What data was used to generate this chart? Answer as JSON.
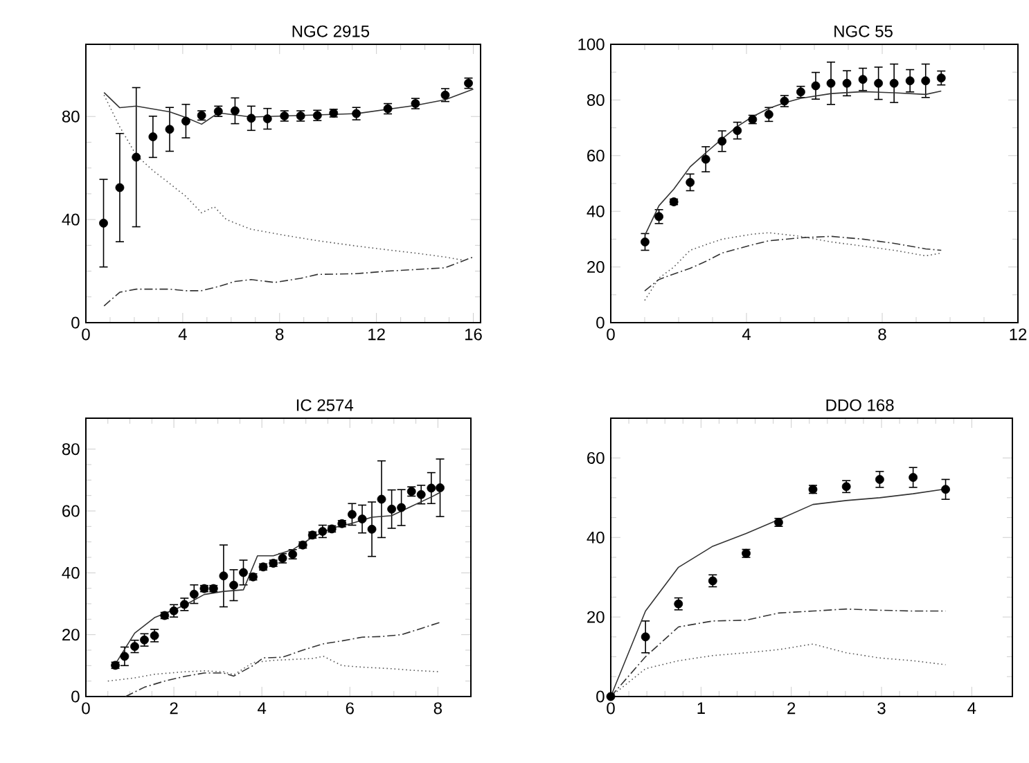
{
  "chart_data": [
    {
      "type": "scatter",
      "marker": "circle",
      "title": "NGC 2915",
      "xlim": [
        0,
        16.3
      ],
      "ylim": [
        0,
        108
      ],
      "xticks": [
        0,
        4,
        8,
        12,
        16
      ],
      "yticks": [
        0,
        40,
        80
      ],
      "series": [
        {
          "color": "#000000",
          "x": [
            0.73,
            1.4,
            2.08,
            2.77,
            3.46,
            4.13,
            4.78,
            5.47,
            6.16,
            6.83,
            7.5,
            8.2,
            8.87,
            9.56,
            10.23,
            11.17,
            12.47,
            13.61,
            14.84,
            15.8
          ],
          "values": [
            38.6,
            52.4,
            64.2,
            72.1,
            75,
            78.2,
            80.4,
            82,
            82.2,
            79.3,
            79.1,
            80.2,
            80.2,
            80.4,
            81.3,
            81.1,
            83,
            85,
            88.3,
            92.9
          ],
          "errors": [
            17,
            21,
            27,
            8,
            8.5,
            6.5,
            1.8,
            2,
            5,
            4.7,
            4,
            2,
            2,
            2,
            1.5,
            2.4,
            2,
            2,
            2.5,
            2
          ]
        },
        {
          "type": "line",
          "marker": "none",
          "line_style": "solid",
          "color": "#333333",
          "x": [
            0.75,
            1.4,
            2.08,
            3.46,
            4.13,
            4.78,
            5.47,
            6.83,
            8.87,
            11.17,
            13.61,
            14.84,
            16
          ],
          "values": [
            89.3,
            83.4,
            84,
            81.8,
            79.6,
            77,
            81.4,
            79.8,
            80.4,
            81.1,
            84.3,
            86.5,
            90.6
          ]
        },
        {
          "type": "line",
          "marker": "none",
          "line_style": "dotted",
          "color": "#555555",
          "x": [
            0.75,
            1.4,
            2.08,
            2.77,
            3.46,
            4.13,
            4.78,
            5.3,
            5.8,
            6.8,
            8.2,
            9.56,
            11.2,
            12.5,
            13.6,
            14.8,
            15.6
          ],
          "values": [
            88.3,
            76,
            65,
            59,
            54,
            49,
            42.6,
            45,
            40,
            36.3,
            33.9,
            31.8,
            29.7,
            28.2,
            27,
            25.5,
            24.2
          ]
        },
        {
          "type": "line",
          "marker": "none",
          "line_style": "dashed",
          "color": "#333333",
          "x": [
            0.75,
            1.4,
            2.08,
            3.46,
            4.13,
            4.78,
            5.47,
            6.16,
            6.83,
            7.8,
            8.87,
            9.56,
            11.17,
            12.47,
            13.6,
            14.84,
            16
          ],
          "values": [
            6.5,
            11.8,
            13,
            13,
            12.4,
            12.4,
            14,
            16,
            16.7,
            15.6,
            17.2,
            18.7,
            19,
            20,
            20.6,
            21.3,
            25.5
          ]
        }
      ]
    },
    {
      "type": "scatter",
      "marker": "circle",
      "title": "NGC 55",
      "xlim": [
        0,
        12
      ],
      "ylim": [
        0,
        100
      ],
      "xticks": [
        0,
        4,
        8,
        12
      ],
      "yticks": [
        0,
        20,
        40,
        60,
        80,
        100
      ],
      "series": [
        {
          "color": "#000000",
          "x": [
            1.01,
            1.42,
            1.86,
            2.34,
            2.8,
            3.28,
            3.73,
            4.18,
            4.66,
            5.12,
            5.6,
            6.04,
            6.49,
            6.96,
            7.43,
            7.89,
            8.35,
            8.82,
            9.28,
            9.74
          ],
          "values": [
            29,
            38.1,
            43.4,
            50.4,
            58.7,
            65.2,
            69,
            73,
            74.8,
            79.6,
            82.9,
            85.1,
            86,
            86,
            87.4,
            86,
            86,
            86.9,
            86.9,
            87.9
          ],
          "errors": [
            3,
            2.5,
            1,
            3,
            4.5,
            3.7,
            3,
            1.5,
            2.5,
            2,
            2,
            4.8,
            7.6,
            4.5,
            4,
            5.8,
            6.9,
            4,
            6,
            2.5
          ]
        },
        {
          "type": "line",
          "marker": "none",
          "line_style": "solid",
          "color": "#333333",
          "x": [
            1.01,
            1.42,
            1.86,
            2.34,
            2.8,
            3.28,
            3.73,
            4.18,
            4.66,
            5.12,
            5.6,
            6.5,
            7.43,
            8.35,
            9.28,
            9.74
          ],
          "values": [
            31.5,
            42,
            48,
            56,
            61,
            66,
            70.5,
            74,
            77,
            79,
            80.6,
            82.3,
            83,
            82.6,
            82,
            83.2
          ]
        },
        {
          "type": "line",
          "marker": "none",
          "line_style": "dotted",
          "color": "#555555",
          "x": [
            1.0,
            1.42,
            1.86,
            2.34,
            2.8,
            3.28,
            4.18,
            4.66,
            5.6,
            6.5,
            7.43,
            8.35,
            9.28,
            9.74
          ],
          "values": [
            8,
            16,
            20,
            26,
            28,
            30,
            31.8,
            32.3,
            31,
            29,
            27.5,
            26,
            24,
            25
          ]
        },
        {
          "type": "line",
          "marker": "none",
          "line_style": "dashed",
          "color": "#333333",
          "x": [
            1.0,
            1.42,
            1.86,
            2.34,
            2.8,
            3.28,
            4.18,
            4.66,
            5.6,
            6.5,
            7.43,
            8.35,
            9.28,
            9.74
          ],
          "values": [
            11.4,
            15.5,
            17.5,
            19.5,
            22,
            25,
            28,
            29.4,
            30.5,
            31,
            30,
            28.5,
            26.5,
            26
          ]
        }
      ]
    },
    {
      "type": "scatter",
      "marker": "circle",
      "title": "IC 2574",
      "xlim": [
        0,
        8.75
      ],
      "ylim": [
        0,
        90
      ],
      "xticks": [
        0,
        2,
        4,
        6,
        8
      ],
      "yticks": [
        0,
        20,
        40,
        60,
        80
      ],
      "series": [
        {
          "color": "#000000",
          "x": [
            0.67,
            0.88,
            1.11,
            1.33,
            1.56,
            1.79,
            2.0,
            2.24,
            2.46,
            2.69,
            2.9,
            3.13,
            3.36,
            3.58,
            3.8,
            4.03,
            4.26,
            4.47,
            4.7,
            4.93,
            5.15,
            5.38,
            5.59,
            5.82,
            6.05,
            6.28,
            6.5,
            6.72,
            6.95,
            7.17,
            7.4,
            7.62,
            7.85,
            8.05
          ],
          "values": [
            10.1,
            13,
            16.2,
            18.3,
            19.7,
            26.2,
            27.7,
            29.8,
            33.1,
            34.9,
            34.9,
            39,
            36,
            40.1,
            38.7,
            41.9,
            43.1,
            44.7,
            46,
            49,
            52.2,
            53.4,
            54.2,
            55.9,
            58.9,
            57.4,
            54.1,
            63.8,
            60.6,
            61.1,
            66.3,
            65.3,
            67.4,
            67.5
          ],
          "errors": [
            1,
            3,
            2,
            2,
            2,
            1,
            2,
            2,
            3,
            1,
            1,
            10,
            5,
            4,
            1,
            1,
            1,
            1.5,
            1.5,
            1,
            1,
            2,
            1,
            1,
            3.5,
            4.5,
            8.8,
            12.4,
            6.2,
            5.8,
            1.5,
            3,
            5,
            9.3
          ]
        },
        {
          "type": "line",
          "marker": "none",
          "line_style": "solid",
          "color": "#333333",
          "x": [
            0.67,
            1.11,
            1.56,
            2.24,
            2.69,
            3.13,
            3.58,
            3.9,
            4.26,
            4.7,
            5.15,
            5.6,
            6.05,
            6.5,
            6.95,
            7.4,
            7.85,
            8.05
          ],
          "values": [
            10.5,
            20.5,
            25.5,
            29.5,
            33,
            34,
            34.5,
            45.5,
            45.5,
            47.5,
            51.5,
            54.5,
            56,
            58,
            58.5,
            61.5,
            64.5,
            66
          ]
        },
        {
          "type": "line",
          "marker": "none",
          "line_style": "dotted",
          "color": "#555555",
          "x": [
            0.5,
            1.1,
            1.56,
            2.24,
            2.69,
            3.13,
            3.36,
            3.8,
            4.26,
            4.7,
            5.15,
            5.4,
            5.82,
            6.28,
            6.95,
            7.4,
            8.05
          ],
          "values": [
            5,
            6,
            7.2,
            8,
            8.3,
            8,
            7,
            11,
            11.7,
            12,
            12.3,
            13,
            10,
            9.5,
            9,
            8.5,
            8
          ]
        },
        {
          "type": "line",
          "marker": "none",
          "line_style": "dashed",
          "color": "#333333",
          "x": [
            0.9,
            1.33,
            1.79,
            2.24,
            2.69,
            3.13,
            3.36,
            3.8,
            4.03,
            4.47,
            4.93,
            5.38,
            5.82,
            6.28,
            6.72,
            7.17,
            7.62,
            8.05
          ],
          "values": [
            0,
            3,
            5,
            6.5,
            7.6,
            7.6,
            6.6,
            10,
            12.5,
            12.7,
            15,
            17,
            18,
            19.2,
            19.4,
            20,
            22,
            24
          ]
        }
      ]
    },
    {
      "type": "scatter",
      "marker": "circle",
      "title": "DDO 168",
      "xlim": [
        0,
        4.45
      ],
      "ylim": [
        0,
        70
      ],
      "xticks": [
        0,
        1,
        2,
        3,
        4
      ],
      "yticks": [
        0,
        20,
        40,
        60
      ],
      "series": [
        {
          "color": "#000000",
          "x": [
            0,
            0.385,
            0.75,
            1.13,
            1.5,
            1.86,
            2.24,
            2.61,
            2.98,
            3.35,
            3.71
          ],
          "values": [
            0,
            15,
            23.3,
            29.1,
            36,
            43.8,
            52.1,
            52.8,
            54.6,
            55.1,
            52.1
          ],
          "errors": [
            0,
            4,
            1.5,
            1.5,
            1,
            1,
            1,
            1.5,
            2,
            2.5,
            2.5
          ]
        },
        {
          "type": "line",
          "marker": "none",
          "line_style": "solid",
          "color": "#333333",
          "x": [
            0,
            0.385,
            0.75,
            1.13,
            1.5,
            1.86,
            2.24,
            2.61,
            2.98,
            3.35,
            3.71
          ],
          "values": [
            0,
            21.5,
            32.5,
            37.8,
            41,
            44.5,
            48.3,
            49.3,
            50,
            51,
            52.2
          ]
        },
        {
          "type": "line",
          "marker": "none",
          "line_style": "dashed",
          "color": "#333333",
          "x": [
            0,
            0.385,
            0.75,
            1.13,
            1.5,
            1.86,
            2.24,
            2.61,
            2.98,
            3.35,
            3.71
          ],
          "values": [
            0,
            10,
            17.5,
            19,
            19.2,
            21,
            21.5,
            22,
            21.7,
            21.5,
            21.5
          ]
        },
        {
          "type": "line",
          "marker": "none",
          "line_style": "dotted",
          "color": "#555555",
          "x": [
            0,
            0.385,
            0.75,
            1.13,
            1.5,
            1.86,
            2.24,
            2.61,
            2.98,
            3.35,
            3.71
          ],
          "values": [
            0,
            7,
            9,
            10.3,
            11,
            11.8,
            13.2,
            11,
            9.7,
            9,
            8
          ]
        }
      ]
    }
  ]
}
